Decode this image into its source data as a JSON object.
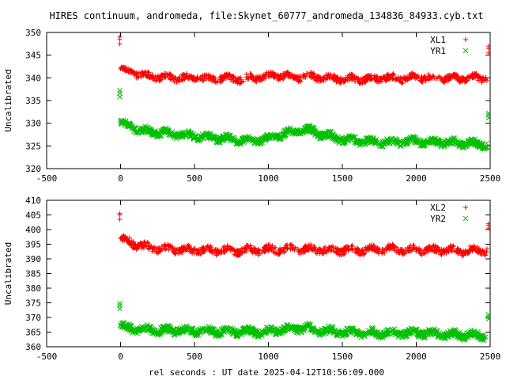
{
  "title": "HIRES continuum, andromeda, file:Skynet_60777_andromeda_134836_84933.cyb.txt",
  "xlabel": "rel seconds : UT date 2025-04-12T10:56:09.000",
  "colors": {
    "red": "#ff0000",
    "green": "#00c000"
  },
  "chart_data": [
    {
      "type": "scatter",
      "ylabel": "Uncalibrated",
      "xlim": [
        -500,
        2500
      ],
      "ylim": [
        320,
        350
      ],
      "xticks": [
        -500,
        0,
        500,
        1000,
        1500,
        2000,
        2500
      ],
      "yticks": [
        320,
        325,
        330,
        335,
        340,
        345,
        350
      ],
      "legend_position": "top-right",
      "series": [
        {
          "name": "XL1",
          "marker": "plus",
          "color": "#ff0000",
          "x": [
            -5,
            -5,
            -5,
            0,
            10,
            25,
            50,
            100,
            150,
            200,
            300,
            400,
            500,
            600,
            700,
            800,
            900,
            1000,
            1050,
            1100,
            1200,
            1300,
            1400,
            1500,
            1600,
            1700,
            1800,
            1900,
            2000,
            2100,
            2200,
            2300,
            2400,
            2450,
            2490,
            2490,
            2490
          ],
          "y": [
            347.5,
            348.5,
            349,
            342,
            342.3,
            341.8,
            341.5,
            341,
            340.6,
            340.3,
            340.2,
            340,
            340.1,
            339.8,
            339.9,
            339.8,
            340,
            340.3,
            340.6,
            340.5,
            340.2,
            340.3,
            340,
            339.8,
            339.7,
            339.8,
            340,
            339.9,
            340.1,
            340,
            340,
            339.9,
            340.1,
            340,
            345.5,
            346.5,
            347
          ]
        },
        {
          "name": "YR1",
          "marker": "cross",
          "color": "#00c000",
          "x": [
            -5,
            -5,
            -5,
            0,
            10,
            25,
            50,
            100,
            150,
            200,
            300,
            400,
            500,
            600,
            700,
            800,
            900,
            1000,
            1050,
            1100,
            1150,
            1200,
            1250,
            1300,
            1350,
            1400,
            1500,
            1600,
            1700,
            1800,
            1900,
            2000,
            2100,
            2200,
            2300,
            2400,
            2450,
            2490,
            2490,
            2490
          ],
          "y": [
            335.8,
            336.6,
            337.2,
            330.4,
            330.2,
            329.8,
            329.4,
            328.8,
            328.4,
            328.1,
            327.8,
            327.5,
            327.1,
            326.8,
            326.6,
            326.3,
            326.2,
            326.6,
            327.2,
            327.5,
            328,
            328.3,
            328.5,
            328.2,
            327.7,
            327.2,
            326.5,
            326.2,
            325.9,
            325.8,
            325.9,
            326.1,
            325.8,
            325.8,
            325.6,
            325.5,
            325.4,
            331.2,
            331.8,
            332.2
          ]
        }
      ]
    },
    {
      "type": "scatter",
      "ylabel": "Uncalibrated",
      "xlim": [
        -500,
        2500
      ],
      "ylim": [
        360,
        410
      ],
      "xticks": [
        -500,
        0,
        500,
        1000,
        1500,
        2000,
        2500
      ],
      "yticks": [
        360,
        365,
        370,
        375,
        380,
        385,
        390,
        395,
        400,
        405,
        410
      ],
      "legend_position": "top-right",
      "series": [
        {
          "name": "XL2",
          "marker": "plus",
          "color": "#ff0000",
          "x": [
            -5,
            -5,
            -5,
            0,
            10,
            25,
            50,
            100,
            150,
            200,
            300,
            400,
            500,
            600,
            700,
            800,
            900,
            1000,
            1100,
            1200,
            1300,
            1400,
            1500,
            1600,
            1700,
            1800,
            1900,
            2000,
            2100,
            2200,
            2300,
            2400,
            2450,
            2490,
            2490,
            2490
          ],
          "y": [
            403.5,
            405,
            405.5,
            397,
            396.8,
            396.4,
            396,
            395,
            394.3,
            393.8,
            393.4,
            393.2,
            393,
            393,
            392.9,
            392.9,
            393,
            393.1,
            393.2,
            393.3,
            393.1,
            393,
            393,
            393,
            393.1,
            393.3,
            393.2,
            393.1,
            393,
            393,
            392.9,
            392.8,
            392.8,
            400.5,
            401.5,
            402
          ]
        },
        {
          "name": "YR2",
          "marker": "cross",
          "color": "#00c000",
          "x": [
            -5,
            -5,
            -5,
            0,
            10,
            25,
            50,
            100,
            150,
            200,
            300,
            400,
            500,
            600,
            700,
            800,
            900,
            1000,
            1100,
            1200,
            1250,
            1300,
            1400,
            1500,
            1600,
            1700,
            1800,
            1900,
            2000,
            2100,
            2200,
            2300,
            2400,
            2450,
            2490,
            2490,
            2490
          ],
          "y": [
            373,
            374,
            374.8,
            367.2,
            367,
            366.6,
            366.4,
            366,
            365.8,
            365.7,
            365.6,
            365.5,
            365.4,
            365.3,
            365.3,
            365.2,
            365,
            365.4,
            365.9,
            366.4,
            366.6,
            366,
            365.4,
            365,
            364.9,
            364.8,
            364.6,
            364.6,
            364.8,
            364.5,
            364.3,
            364.1,
            364,
            363.9,
            369.5,
            370.2,
            371
          ]
        }
      ]
    }
  ]
}
